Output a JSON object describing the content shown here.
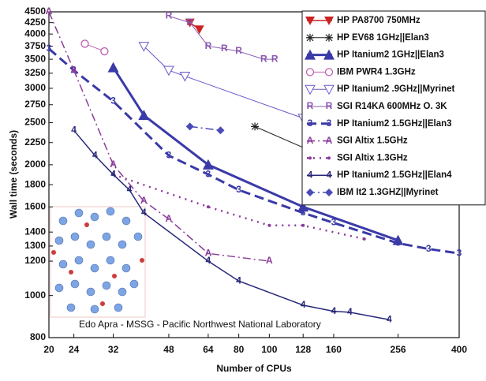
{
  "chart_data": {
    "type": "line",
    "x_label": "Number of CPUs",
    "y_label": "Wall time (seconds)",
    "annotation": "Edo Apra - MSSG - Pacific  Northwest National Laboratory",
    "xscale": "log",
    "yscale": "log",
    "legend": "upper right",
    "xlim": [
      20,
      400
    ],
    "xticks": [
      20,
      24,
      32,
      48,
      64,
      80,
      100,
      128,
      160,
      256,
      400
    ],
    "ylim": [
      800,
      4500
    ],
    "yticks": [
      800,
      1000,
      1200,
      1300,
      1400,
      1600,
      1800,
      2000,
      2250,
      2500,
      2750,
      3000,
      3250,
      3500,
      3750,
      4000,
      4250,
      4500
    ],
    "series": [
      {
        "name": "HP PA8700 750MHz",
        "color": "#cc2222",
        "marker": "tri-down",
        "dash": "solid",
        "width": 1.5,
        "x": [
          56,
          60
        ],
        "values": [
          4250,
          4100
        ]
      },
      {
        "name": "HP EV68 1GHz||Elan3",
        "color": "#222222",
        "marker": "star",
        "dash": "solid",
        "width": 1,
        "x": [
          90,
          256,
          264
        ],
        "values": [
          2450,
          1760,
          1760
        ]
      },
      {
        "name": "HP Itanium2 1GHz||Elan3",
        "color": "#3a3aa8",
        "marker": "tri-up",
        "dash": "solid",
        "width": 3,
        "x": [
          32,
          40,
          64,
          128,
          256
        ],
        "values": [
          3350,
          2600,
          2000,
          1600,
          1340
        ]
      },
      {
        "name": "IBM PWR4 1.3GHz",
        "color": "#c060b0",
        "marker": "circle",
        "dash": "solid",
        "width": 1,
        "x": [
          26,
          30
        ],
        "values": [
          3800,
          3650
        ]
      },
      {
        "name": "HP Itanium2 .9GHz||Myrinet",
        "color": "#6a5acd",
        "marker": "tri-down-open",
        "dash": "solid",
        "width": 1,
        "x": [
          40,
          48,
          54,
          128
        ],
        "values": [
          3750,
          3300,
          3200,
          2560
        ]
      },
      {
        "name": "SGI R14KA 600MHz O. 3K",
        "color": "#8a58b0",
        "marker": "R",
        "dash": "solid",
        "width": 1,
        "x": [
          48,
          56,
          64,
          72,
          80,
          96,
          104
        ],
        "values": [
          4400,
          4250,
          3750,
          3700,
          3650,
          3500,
          3500
        ]
      },
      {
        "name": "HP Itanium2 1.5GHz||Elan3",
        "color": "#3a3aa8",
        "marker": "3",
        "dash": "dash",
        "width": 3,
        "x": [
          20,
          24,
          32,
          48,
          64,
          80,
          128,
          160,
          256,
          320,
          400
        ],
        "values": [
          3700,
          3300,
          2800,
          2100,
          1900,
          1750,
          1550,
          1470,
          1320,
          1280,
          1250
        ]
      },
      {
        "name": "SGI Altix 1.5GHz",
        "color": "#8a3a9a",
        "marker": "A",
        "dash": "dashdot",
        "width": 1.5,
        "x": [
          20,
          24,
          32,
          40,
          48,
          64,
          100
        ],
        "values": [
          4500,
          3300,
          2000,
          1650,
          1500,
          1250,
          1200
        ]
      },
      {
        "name": "SGI Altix 1.3GHz",
        "color": "#8a3a9a",
        "marker": "dot",
        "dash": "dot",
        "width": 2.5,
        "x": [
          32,
          64,
          100,
          128,
          200
        ],
        "values": [
          1900,
          1600,
          1450,
          1450,
          1350
        ]
      },
      {
        "name": "HP Itanium2 1.5GHz||Elan4",
        "color": "#28287a",
        "marker": "4",
        "dash": "solid",
        "width": 1.5,
        "x": [
          24,
          28,
          32,
          36,
          40,
          64,
          80,
          128,
          160,
          180,
          240
        ],
        "values": [
          2400,
          2100,
          1900,
          1750,
          1550,
          1200,
          1080,
          950,
          920,
          915,
          880
        ]
      },
      {
        "name": "IBM It2 1.3GHZ||Myrinet",
        "color": "#4a4ab8",
        "marker": "diamond",
        "dash": "dashdot",
        "width": 1.5,
        "x": [
          56,
          70
        ],
        "values": [
          2450,
          2400
        ]
      }
    ]
  }
}
